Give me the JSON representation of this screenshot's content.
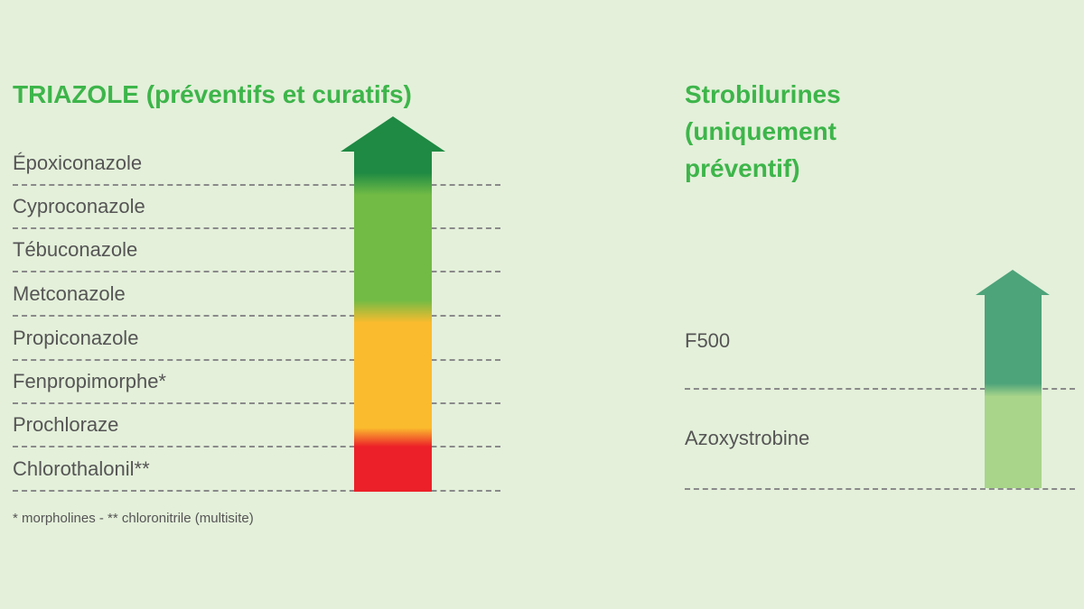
{
  "left_panel": {
    "title": "TRIAZOLE (préventifs et curatifs)",
    "items": [
      {
        "label": "Époxiconazole"
      },
      {
        "label": "Cyproconazole"
      },
      {
        "label": "Tébuconazole"
      },
      {
        "label": "Metconazole"
      },
      {
        "label": "Propiconazole"
      },
      {
        "label": "Fenpropimorphe*"
      },
      {
        "label": "Prochloraze"
      },
      {
        "label": "Chlorothalonil**"
      }
    ],
    "footnote": "* morpholines - ** chloronitrile (multisite)",
    "arrow_colors": [
      "#1e8a43",
      "#72bb45",
      "#fbbb2e",
      "#ec2028"
    ]
  },
  "right_panel": {
    "title": "Strobilurines (uniquement préventif)",
    "items": [
      {
        "label": "F500"
      },
      {
        "label": "Azoxystrobine"
      }
    ],
    "arrow_colors": [
      "#4da37a",
      "#a8d58a"
    ]
  },
  "colors": {
    "background": "#e4f0da",
    "title": "#3db54a",
    "text": "#555555",
    "dashes": "#8a8a8a"
  }
}
